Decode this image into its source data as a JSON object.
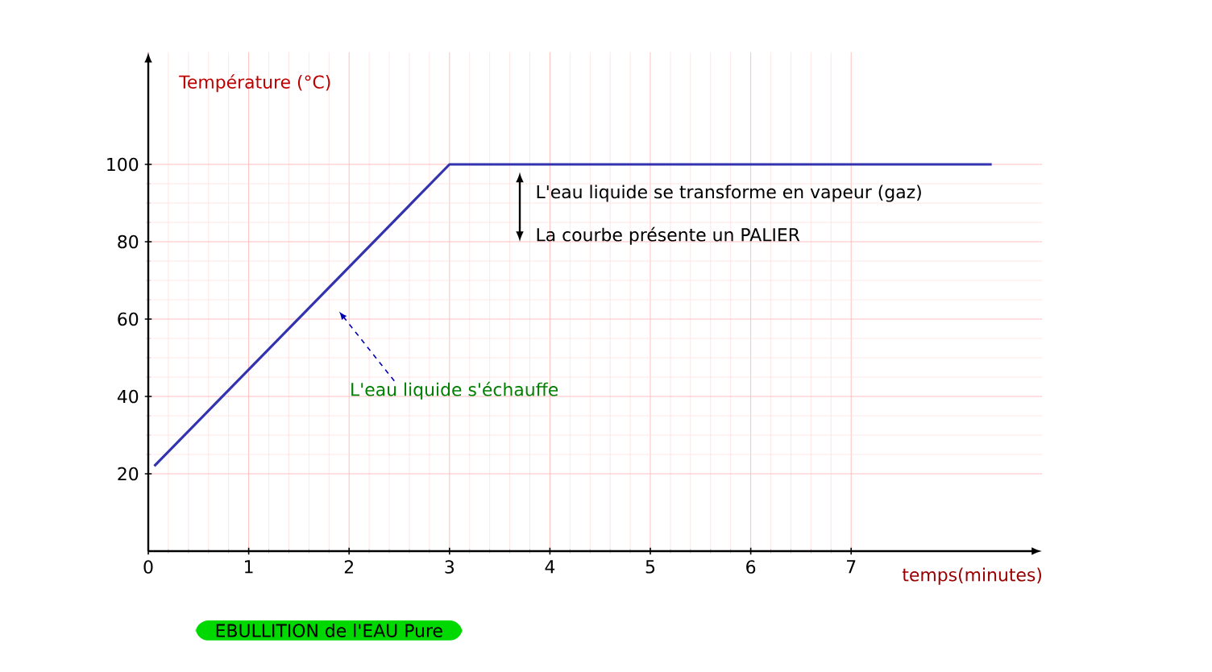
{
  "chart_data": {
    "type": "line",
    "title": "EBULLITION de l'EAU Pure",
    "xlabel": "temps(minutes)",
    "ylabel": "Température (°C)",
    "x": [
      0.06,
      3,
      8.4
    ],
    "series": [
      {
        "color": "#3333b0",
        "values": [
          22,
          100,
          100
        ]
      }
    ],
    "xlim": [
      0,
      8.9
    ],
    "ylim": [
      0,
      129
    ],
    "xticks": [
      0,
      1,
      2,
      3,
      4,
      5,
      6,
      7
    ],
    "yticks": [
      20,
      40,
      60,
      80,
      100
    ],
    "grid": true,
    "annotations": [
      "L'eau liquide se transforme en vapeur (gaz)",
      "La courbe présente un PALIER",
      "L'eau liquide s'échauffe"
    ]
  }
}
